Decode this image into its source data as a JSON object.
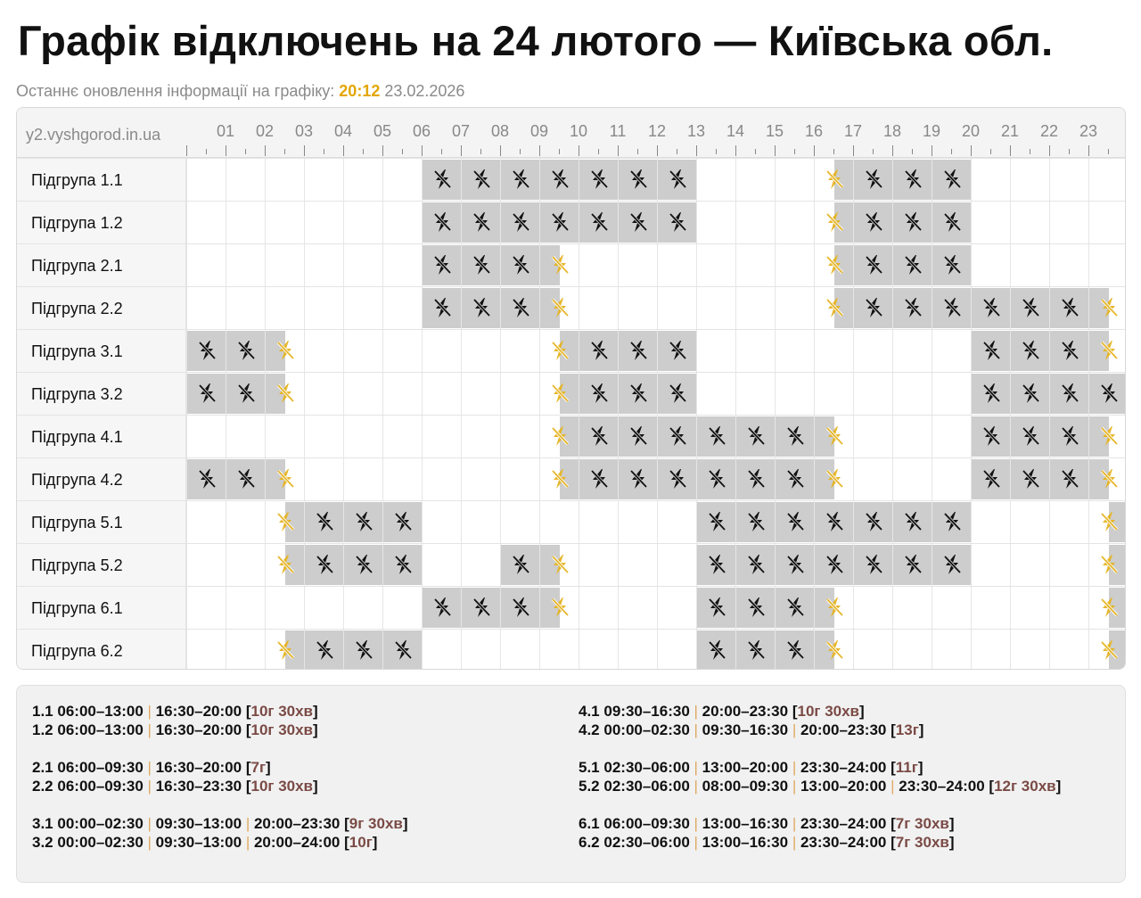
{
  "title": "Графік відключень на 24 лютого — Київська обл.",
  "update": {
    "label": "Останнє оновлення інформації на графіку:",
    "time": "20:12",
    "date": "23.02.2026"
  },
  "site": "y2.vyshgorod.in.ua",
  "hours": [
    "01",
    "02",
    "03",
    "04",
    "05",
    "06",
    "07",
    "08",
    "09",
    "10",
    "11",
    "12",
    "13",
    "14",
    "15",
    "16",
    "17",
    "18",
    "19",
    "20",
    "21",
    "22",
    "23"
  ],
  "colors": {
    "outage": "#cdcdcd",
    "accent": "#e3a600",
    "total": "#7a4a45"
  },
  "icons": {
    "outage": "lightning-off-icon"
  },
  "groups": [
    {
      "id": "1.1",
      "label": "Підгрупа 1.1",
      "ranges": [
        "06:00–13:00",
        "16:30–20:00"
      ],
      "total": "10г 30хв"
    },
    {
      "id": "1.2",
      "label": "Підгрупа 1.2",
      "ranges": [
        "06:00–13:00",
        "16:30–20:00"
      ],
      "total": "10г 30хв"
    },
    {
      "id": "2.1",
      "label": "Підгрупа 2.1",
      "ranges": [
        "06:00–09:30",
        "16:30–20:00"
      ],
      "total": "7г"
    },
    {
      "id": "2.2",
      "label": "Підгрупа 2.2",
      "ranges": [
        "06:00–09:30",
        "16:30–23:30"
      ],
      "total": "10г 30хв"
    },
    {
      "id": "3.1",
      "label": "Підгрупа 3.1",
      "ranges": [
        "00:00–02:30",
        "09:30–13:00",
        "20:00–23:30"
      ],
      "total": "9г 30хв"
    },
    {
      "id": "3.2",
      "label": "Підгрупа 3.2",
      "ranges": [
        "00:00–02:30",
        "09:30–13:00",
        "20:00–24:00"
      ],
      "total": "10г"
    },
    {
      "id": "4.1",
      "label": "Підгрупа 4.1",
      "ranges": [
        "09:30–16:30",
        "20:00–23:30"
      ],
      "total": "10г 30хв"
    },
    {
      "id": "4.2",
      "label": "Підгрупа 4.2",
      "ranges": [
        "00:00–02:30",
        "09:30–16:30",
        "20:00–23:30"
      ],
      "total": "13г"
    },
    {
      "id": "5.1",
      "label": "Підгрупа 5.1",
      "ranges": [
        "02:30–06:00",
        "13:00–20:00",
        "23:30–24:00"
      ],
      "total": "11г"
    },
    {
      "id": "5.2",
      "label": "Підгрупа 5.2",
      "ranges": [
        "02:30–06:00",
        "08:00–09:30",
        "13:00–20:00",
        "23:30–24:00"
      ],
      "total": "12г 30хв"
    },
    {
      "id": "6.1",
      "label": "Підгрупа 6.1",
      "ranges": [
        "06:00–09:30",
        "13:00–16:30",
        "23:30–24:00"
      ],
      "total": "7г 30хв"
    },
    {
      "id": "6.2",
      "label": "Підгрупа 6.2",
      "ranges": [
        "02:30–06:00",
        "13:00–16:30",
        "23:30–24:00"
      ],
      "total": "7г 30хв"
    }
  ]
}
